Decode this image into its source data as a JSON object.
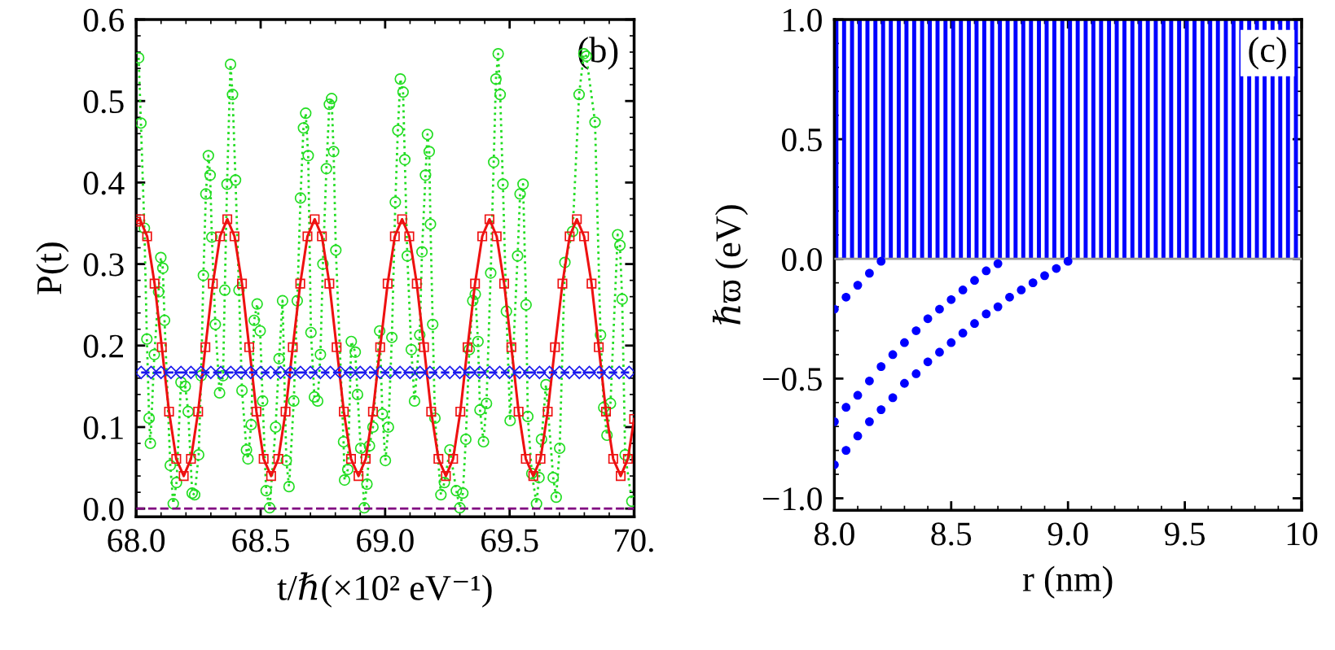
{
  "chart_data": [
    {
      "type": "line",
      "xlabel": "t/ℏ(×10² eV⁻¹)",
      "ylabel": "P(t)",
      "annotations": [
        "(b)"
      ],
      "xlim": [
        68.0,
        70.0
      ],
      "ylim": [
        -0.01,
        0.6
      ],
      "xticks": [
        {
          "value": 68.0,
          "label": "68.0"
        },
        68.5,
        {
          "value": 69.0,
          "label": "69.0"
        },
        69.5,
        {
          "value": 70.0,
          "label": "70."
        }
      ],
      "yticks": [
        {
          "value": 0.0,
          "label": "0.0"
        },
        0.1,
        0.2,
        0.3,
        0.4,
        0.5,
        0.6
      ],
      "grid": false,
      "legend": false,
      "series": [
        {
          "color": "#22dd22",
          "marker": "circle",
          "line_style": "dotted",
          "x": [
            68.01,
            68.019,
            68.033,
            68.043,
            68.052,
            68.057,
            68.073,
            68.09,
            68.099,
            68.107,
            68.114,
            68.137,
            68.149,
            68.162,
            68.18,
            68.197,
            68.209,
            68.225,
            68.235,
            68.251,
            68.261,
            68.27,
            68.28,
            68.29,
            68.297,
            68.304,
            68.318,
            68.335,
            68.349,
            68.356,
            68.365,
            68.379,
            68.387,
            68.399,
            68.413,
            68.425,
            68.443,
            68.449,
            68.462,
            68.474,
            68.486,
            68.498,
            68.508,
            68.522,
            68.536,
            68.56,
            68.574,
            68.588,
            68.603,
            68.614,
            68.633,
            68.647,
            68.66,
            68.672,
            68.681,
            68.691,
            68.702,
            68.716,
            68.729,
            68.74,
            68.75,
            68.764,
            68.776,
            68.785,
            68.793,
            68.802,
            68.833,
            68.837,
            68.85,
            68.864,
            68.88,
            68.889,
            68.902,
            68.916,
            68.927,
            68.937,
            68.951,
            68.978,
            68.989,
            69.001,
            69.013,
            69.027,
            69.041,
            69.051,
            69.061,
            69.072,
            69.079,
            69.089,
            69.105,
            69.118,
            69.139,
            69.148,
            69.162,
            69.17,
            69.177,
            69.182,
            69.191,
            69.2,
            69.224,
            69.238,
            69.26,
            69.286,
            69.3,
            69.312,
            69.324,
            69.338,
            69.352,
            69.362,
            69.373,
            69.381,
            69.395,
            69.407,
            69.424,
            69.436,
            69.445,
            69.454,
            69.462,
            69.473,
            69.487,
            69.502,
            69.532,
            69.542,
            69.554,
            69.566,
            69.573,
            69.589,
            69.608,
            69.618,
            69.628,
            69.646,
            69.675,
            69.687,
            69.701,
            69.722,
            69.753,
            69.779,
            69.798,
            69.808,
            69.843,
            69.865,
            69.878,
            69.891,
            69.905,
            69.934,
            69.943,
            69.952,
            69.964,
            69.991
          ],
          "values": [
            0.553,
            0.473,
            0.344,
            0.208,
            0.111,
            0.08,
            0.189,
            0.266,
            0.308,
            0.295,
            0.231,
            0.053,
            0.006,
            0.032,
            0.155,
            0.15,
            0.119,
            0.019,
            0.017,
            0.066,
            0.163,
            0.286,
            0.386,
            0.433,
            0.409,
            0.333,
            0.226,
            0.142,
            0.163,
            0.268,
            0.398,
            0.545,
            0.508,
            0.403,
            0.268,
            0.145,
            0.072,
            0.061,
            0.103,
            0.231,
            0.251,
            0.218,
            0.132,
            0.022,
            0.001,
            0.1,
            0.184,
            0.255,
            0.059,
            0.027,
            0.132,
            0.255,
            0.381,
            0.467,
            0.485,
            0.433,
            0.216,
            0.137,
            0.132,
            0.189,
            0.3,
            0.417,
            0.496,
            0.503,
            0.438,
            0.317,
            0.082,
            0.035,
            0.048,
            0.205,
            0.192,
            0.14,
            0.074,
            0.001,
            0.03,
            0.077,
            0.1,
            0.218,
            0.116,
            0.059,
            0.1,
            0.21,
            0.376,
            0.464,
            0.527,
            0.511,
            0.428,
            0.31,
            0.195,
            0.132,
            0.213,
            0.315,
            0.409,
            0.459,
            0.438,
            0.349,
            0.226,
            0.111,
            0.017,
            0.032,
            0.072,
            0.022,
            0.001,
            0.019,
            0.085,
            0.195,
            0.255,
            0.263,
            0.205,
            0.121,
            0.082,
            0.129,
            0.289,
            0.425,
            0.527,
            0.558,
            0.508,
            0.398,
            0.242,
            0.108,
            0.31,
            0.386,
            0.398,
            0.25,
            0.113,
            0.043,
            0.006,
            0.038,
            0.085,
            0.152,
            0.038,
            0.014,
            0.074,
            0.302,
            0.34,
            0.508,
            0.558,
            0.555,
            0.474,
            0.213,
            0.124,
            0.09,
            0.129,
            0.336,
            0.323,
            0.257,
            0.066,
            0.009
          ]
        },
        {
          "color": "#ee1111",
          "marker": "square",
          "line_style": "solid",
          "x": [
            68.0,
            68.015,
            68.044,
            68.074,
            68.103,
            68.132,
            68.161,
            68.191,
            68.22,
            68.249,
            68.278,
            68.308,
            68.337,
            68.366,
            68.395,
            68.425,
            68.454,
            68.483,
            68.512,
            68.542,
            68.571,
            68.6,
            68.629,
            68.659,
            68.688,
            68.717,
            68.746,
            68.776,
            68.805,
            68.834,
            68.863,
            68.893,
            68.922,
            68.951,
            68.98,
            69.01,
            69.039,
            69.068,
            69.097,
            69.127,
            69.156,
            69.185,
            69.214,
            69.244,
            69.273,
            69.302,
            69.331,
            69.361,
            69.39,
            69.419,
            69.448,
            69.478,
            69.507,
            69.536,
            69.565,
            69.595,
            69.624,
            69.653,
            69.682,
            69.712,
            69.741,
            69.77,
            69.799,
            69.829,
            69.858,
            69.887,
            69.916,
            69.946,
            69.975,
            70.0
          ],
          "values": [
            0.352,
            0.355,
            0.334,
            0.276,
            0.198,
            0.119,
            0.061,
            0.04,
            0.061,
            0.119,
            0.198,
            0.276,
            0.334,
            0.355,
            0.334,
            0.276,
            0.198,
            0.119,
            0.061,
            0.04,
            0.061,
            0.119,
            0.198,
            0.276,
            0.334,
            0.355,
            0.334,
            0.276,
            0.198,
            0.119,
            0.061,
            0.04,
            0.061,
            0.119,
            0.198,
            0.276,
            0.334,
            0.355,
            0.334,
            0.276,
            0.198,
            0.119,
            0.061,
            0.04,
            0.061,
            0.119,
            0.198,
            0.276,
            0.334,
            0.355,
            0.334,
            0.276,
            0.198,
            0.119,
            0.061,
            0.04,
            0.061,
            0.119,
            0.198,
            0.276,
            0.334,
            0.355,
            0.334,
            0.276,
            0.198,
            0.119,
            0.061,
            0.04,
            0.061,
            0.11
          ]
        },
        {
          "color": "#1a1aee",
          "marker": "diamond",
          "line_style": "dashed",
          "x": [
            68.02,
            68.06,
            68.1,
            68.14,
            68.18,
            68.22,
            68.26,
            68.3,
            68.34,
            68.38,
            68.42,
            68.46,
            68.5,
            68.54,
            68.58,
            68.62,
            68.66,
            68.7,
            68.74,
            68.78,
            68.82,
            68.86,
            68.9,
            68.94,
            68.98,
            69.02,
            69.06,
            69.1,
            69.14,
            69.18,
            69.22,
            69.26,
            69.3,
            69.34,
            69.38,
            69.42,
            69.46,
            69.5,
            69.54,
            69.58,
            69.62,
            69.66,
            69.7,
            69.74,
            69.78,
            69.82,
            69.86,
            69.9,
            69.94,
            69.98
          ],
          "values": [
            0.167,
            0.167,
            0.167,
            0.167,
            0.167,
            0.167,
            0.167,
            0.167,
            0.167,
            0.167,
            0.167,
            0.167,
            0.167,
            0.167,
            0.167,
            0.167,
            0.167,
            0.167,
            0.167,
            0.167,
            0.167,
            0.167,
            0.167,
            0.167,
            0.167,
            0.167,
            0.167,
            0.167,
            0.167,
            0.167,
            0.167,
            0.167,
            0.167,
            0.167,
            0.167,
            0.167,
            0.167,
            0.167,
            0.167,
            0.167,
            0.167,
            0.167,
            0.167,
            0.167,
            0.167,
            0.167,
            0.167,
            0.167,
            0.167,
            0.167
          ]
        },
        {
          "color": "#800080",
          "marker": "none",
          "line_style": "dashed",
          "x": [
            68.0,
            70.0
          ],
          "values": [
            0.0,
            0.0
          ]
        }
      ]
    },
    {
      "type": "scatter",
      "xlabel": "r (nm)",
      "ylabel": "ℏϖ (eV)",
      "annotations": [
        "(c)"
      ],
      "xlim": [
        8.0,
        10.0
      ],
      "ylim": [
        -1.05,
        1.0
      ],
      "xticks": [
        {
          "value": 8.0,
          "label": "8.0"
        },
        8.5,
        {
          "value": 9.0,
          "label": "9.0"
        },
        9.5,
        {
          "value": 10.0,
          "label": "10"
        }
      ],
      "yticks": [
        {
          "value": -1.0,
          "label": "−1.0"
        },
        {
          "value": -0.5,
          "label": "−0.5"
        },
        {
          "value": 0.0,
          "label": "0.0"
        },
        0.5,
        {
          "value": 1.0,
          "label": "1.0"
        }
      ],
      "grid": false,
      "legend": false,
      "ref_lines": [
        {
          "axis": "y",
          "value": 0.0,
          "color": "#999999"
        }
      ],
      "series": [
        {
          "type": "bar",
          "color": "#0000ff",
          "x": [
            8.0,
            8.033,
            8.067,
            8.1,
            8.133,
            8.167,
            8.2,
            8.233,
            8.267,
            8.3,
            8.333,
            8.367,
            8.4,
            8.433,
            8.467,
            8.5,
            8.533,
            8.567,
            8.6,
            8.633,
            8.667,
            8.7,
            8.733,
            8.767,
            8.8,
            8.833,
            8.867,
            8.9,
            8.933,
            8.967,
            9.0,
            9.033,
            9.067,
            9.1,
            9.133,
            9.167,
            9.2,
            9.233,
            9.267,
            9.3,
            9.333,
            9.367,
            9.4,
            9.433,
            9.467,
            9.5,
            9.533,
            9.567,
            9.6,
            9.633,
            9.667,
            9.7,
            9.733,
            9.767,
            9.8,
            9.833,
            9.867,
            9.9,
            9.933,
            9.967
          ],
          "values": [
            1.0,
            1.0,
            1.0,
            1.0,
            1.0,
            1.0,
            1.0,
            1.0,
            1.0,
            1.0,
            1.0,
            1.0,
            1.0,
            1.0,
            1.0,
            1.0,
            1.0,
            1.0,
            1.0,
            1.0,
            1.0,
            1.0,
            1.0,
            1.0,
            1.0,
            1.0,
            1.0,
            1.0,
            1.0,
            1.0,
            1.0,
            1.0,
            1.0,
            1.0,
            1.0,
            1.0,
            1.0,
            1.0,
            1.0,
            1.0,
            1.0,
            1.0,
            1.0,
            1.0,
            1.0,
            1.0,
            1.0,
            1.0,
            1.0,
            1.0,
            1.0,
            1.0,
            1.0,
            1.0,
            1.0,
            1.0,
            1.0,
            1.0,
            1.0,
            1.0
          ]
        },
        {
          "color": "#0000ff",
          "marker": "circle",
          "x": [
            8.0,
            8.05,
            8.1,
            8.15,
            8.2
          ],
          "values": [
            -0.21,
            -0.16,
            -0.11,
            -0.06,
            -0.01
          ]
        },
        {
          "color": "#0000ff",
          "marker": "circle",
          "x": [
            8.0,
            8.05,
            8.1,
            8.15,
            8.2,
            8.25,
            8.3,
            8.35,
            8.4,
            8.45,
            8.5,
            8.55,
            8.6,
            8.65,
            8.7
          ],
          "values": [
            -0.68,
            -0.62,
            -0.57,
            -0.51,
            -0.45,
            -0.4,
            -0.35,
            -0.3,
            -0.25,
            -0.21,
            -0.17,
            -0.13,
            -0.09,
            -0.05,
            -0.02
          ]
        },
        {
          "color": "#0000ff",
          "marker": "circle",
          "x": [
            8.0,
            8.05,
            8.1,
            8.15,
            8.2,
            8.25,
            8.3,
            8.35,
            8.4,
            8.45,
            8.5,
            8.55,
            8.6,
            8.65,
            8.7,
            8.75,
            8.8,
            8.85,
            8.9,
            8.95,
            9.0
          ],
          "values": [
            -0.86,
            -0.8,
            -0.74,
            -0.68,
            -0.63,
            -0.58,
            -0.52,
            -0.48,
            -0.43,
            -0.39,
            -0.35,
            -0.31,
            -0.27,
            -0.23,
            -0.2,
            -0.16,
            -0.13,
            -0.1,
            -0.07,
            -0.04,
            -0.01
          ]
        }
      ]
    }
  ]
}
